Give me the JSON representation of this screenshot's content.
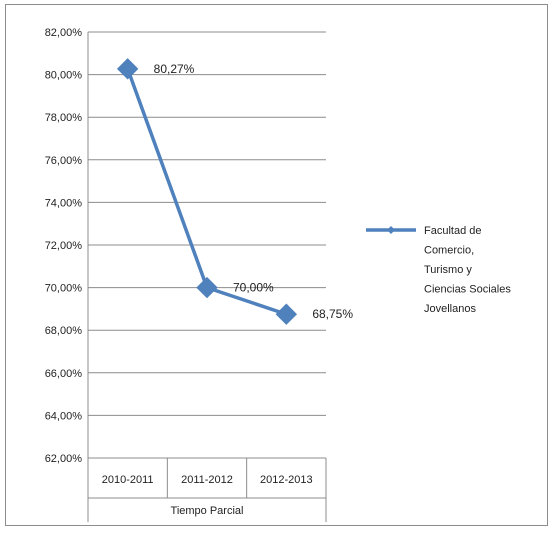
{
  "chart_data": {
    "type": "line",
    "categories": [
      "2010-2011",
      "2011-2012",
      "2012-2013"
    ],
    "group_label": "Tiempo Parcial",
    "series": [
      {
        "name": "Facultad de Comercio, Turismo y Ciencias Sociales Jovellanos",
        "values": [
          80.27,
          70.0,
          68.75
        ],
        "data_labels": [
          "80,27%",
          "70,00%",
          "68,75%"
        ],
        "color": "#4f81bd"
      }
    ],
    "y_ticks": [
      {
        "value": 62,
        "label": "62,00%"
      },
      {
        "value": 64,
        "label": "64,00%"
      },
      {
        "value": 66,
        "label": "66,00%"
      },
      {
        "value": 68,
        "label": "68,00%"
      },
      {
        "value": 70,
        "label": "70,00%"
      },
      {
        "value": 72,
        "label": "72,00%"
      },
      {
        "value": 74,
        "label": "74,00%"
      },
      {
        "value": 76,
        "label": "76,00%"
      },
      {
        "value": 78,
        "label": "78,00%"
      },
      {
        "value": 80,
        "label": "80,00%"
      },
      {
        "value": 82,
        "label": "82,00%"
      }
    ],
    "ylim": [
      62,
      82
    ],
    "grid": true,
    "legend_position": "right",
    "legend_lines": [
      "Facultad de",
      "Comercio,",
      "Turismo y",
      "Ciencias Sociales",
      "Jovellanos"
    ]
  }
}
